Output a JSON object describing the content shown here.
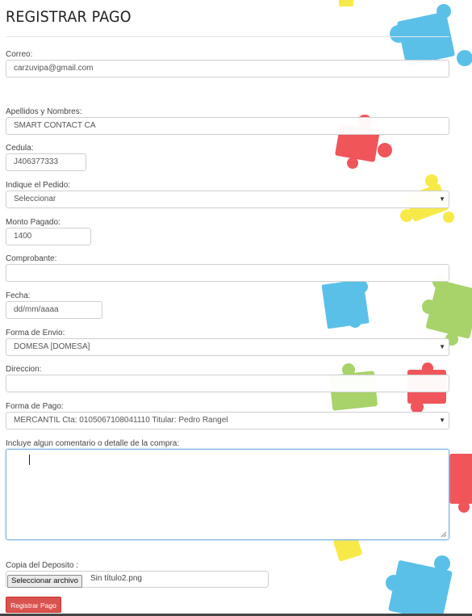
{
  "page": {
    "title": "REGISTRAR PAGO"
  },
  "form": {
    "correo": {
      "label": "Correo:",
      "value": "carzuvipa@gmail.com"
    },
    "nombres": {
      "label": "Apellidos y Nombres:",
      "value": "SMART CONTACT CA"
    },
    "cedula": {
      "label": "Cedula:",
      "value": "J406377333"
    },
    "pedido": {
      "label": "Indique el Pedido:",
      "value": "Seleccionar"
    },
    "monto": {
      "label": "Monto Pagado:",
      "value": "1400"
    },
    "comprobante": {
      "label": "Comprobante:",
      "value": ""
    },
    "fecha": {
      "label": "Fecha:",
      "placeholder": "dd/mm/aaaa"
    },
    "envio": {
      "label": "Forma de Envio:",
      "value": "DOMESA [DOMESA]"
    },
    "direccion": {
      "label": "Direccion:",
      "value": ""
    },
    "pago": {
      "label": "Forma de Pago:",
      "value": "MERCANTIL Cta: 0105067108041110 Titular: Pedro Rangel"
    },
    "comentario": {
      "label": "Incluye algun comentario o detalle de la compra:",
      "value": ""
    },
    "deposito": {
      "label": "Copia del Deposito :",
      "button": "Seleccionar archivo",
      "file_name": "Sin título2.png"
    },
    "submit": "Registrar Pago"
  },
  "colors": {
    "submit": "#d9534f",
    "puzzle_blue": "#5bc0e8",
    "puzzle_red": "#f0555a",
    "puzzle_yellow": "#f7ea48",
    "puzzle_green": "#a8d36a"
  },
  "icons": {
    "select_arrow": "triangle-down-icon"
  }
}
